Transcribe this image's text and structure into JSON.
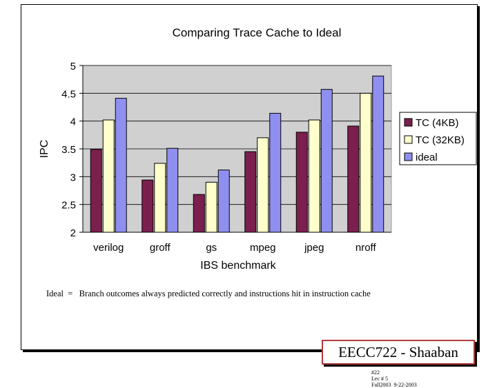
{
  "chart_data": {
    "type": "bar",
    "title": "Comparing Trace Cache to Ideal",
    "xlabel": "IBS benchmark",
    "ylabel": "IPC",
    "ylim": [
      2,
      5
    ],
    "yticks": [
      "2",
      "2.5",
      "3",
      "3.5",
      "4",
      "4.5",
      "5"
    ],
    "categories": [
      "verilog",
      "groff",
      "gs",
      "mpeg",
      "jpeg",
      "nroff"
    ],
    "series": [
      {
        "name": "TC (4KB)",
        "color": "#7b1f4e",
        "values": [
          3.49,
          2.94,
          2.68,
          3.45,
          3.8,
          3.91
        ]
      },
      {
        "name": "TC (32KB)",
        "color": "#ffffcc",
        "values": [
          4.02,
          3.24,
          2.9,
          3.7,
          4.02,
          4.5
        ]
      },
      {
        "name": "ideal",
        "color": "#8f8ff0",
        "values": [
          4.41,
          3.51,
          3.12,
          4.14,
          4.57,
          4.81
        ]
      }
    ],
    "grid": true,
    "legend": "right"
  },
  "note": "Ideal  =   Branch outcomes always predicted correctly and instructions hit in instruction cache",
  "brand": "EECC722 - Shaaban",
  "footer": {
    "slide": "#22",
    "lecture": "Lec # 5",
    "term": "Fall2003  9-22-2003"
  }
}
